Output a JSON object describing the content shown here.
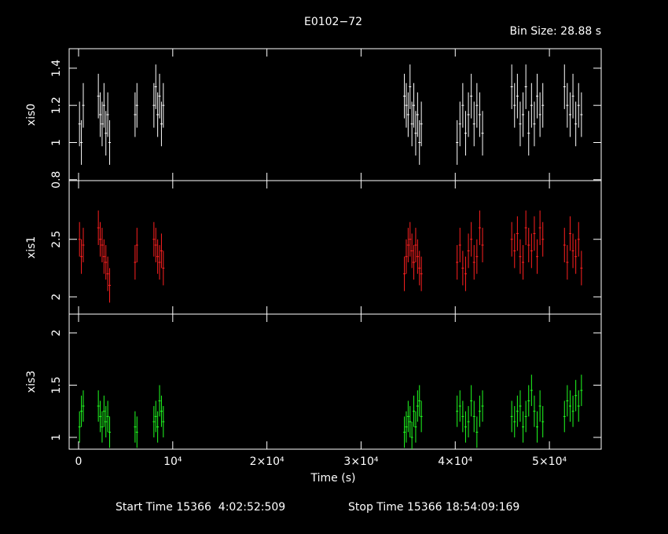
{
  "chart_data": {
    "type": "errorbar",
    "title": "E0102−72",
    "subtitle": "Bin Size: 28.88 s",
    "xlabel": "Time (s)",
    "start_time": "Start Time 15366  4:02:52:509",
    "stop_time": "Stop Time 15366 18:54:09:169",
    "x": [
      100,
      300,
      500,
      2100,
      2300,
      2500,
      2700,
      2900,
      3100,
      3300,
      6000,
      6200,
      8000,
      8200,
      8400,
      8600,
      8800,
      9000,
      34600,
      34800,
      35000,
      35200,
      35400,
      35600,
      35800,
      36000,
      36200,
      36400,
      40200,
      40500,
      40800,
      41100,
      41400,
      41700,
      42000,
      42300,
      42600,
      42900,
      46000,
      46300,
      46600,
      46900,
      47200,
      47500,
      47800,
      48100,
      48400,
      48700,
      49000,
      49300,
      51600,
      51900,
      52200,
      52500,
      52800,
      53100,
      53400
    ],
    "xlim": [
      -1000,
      55500
    ],
    "xticks": [
      0,
      {
        "value": 10000,
        "label": "10⁴"
      },
      {
        "value": 20000,
        "label": "2×10⁴"
      },
      {
        "value": 30000,
        "label": "3×10⁴"
      },
      {
        "value": 40000,
        "label": "4×10⁴"
      },
      {
        "value": 50000,
        "label": "5×10⁴"
      }
    ],
    "series": [
      {
        "name": "xis0",
        "color": "#ffffff",
        "error": 0.12,
        "ylim": [
          0.795,
          1.505
        ],
        "yticks": [
          0.8,
          1,
          1.2,
          1.4
        ],
        "values": [
          1.1,
          1.0,
          1.2,
          1.25,
          1.15,
          1.1,
          1.2,
          1.05,
          1.15,
          1.0,
          1.15,
          1.2,
          1.2,
          1.3,
          1.15,
          1.25,
          1.1,
          1.2,
          1.25,
          1.2,
          1.15,
          1.3,
          1.1,
          1.2,
          1.05,
          1.15,
          1.0,
          1.1,
          1.0,
          1.1,
          1.2,
          1.05,
          1.15,
          1.25,
          1.1,
          1.2,
          1.15,
          1.05,
          1.3,
          1.2,
          1.25,
          1.1,
          1.15,
          1.3,
          1.05,
          1.2,
          1.1,
          1.25,
          1.15,
          1.2,
          1.3,
          1.2,
          1.15,
          1.25,
          1.1,
          1.2,
          1.15
        ]
      },
      {
        "name": "xis1",
        "color": "#ff2020",
        "error": 0.15,
        "ylim": [
          1.85,
          3.01
        ],
        "yticks": [
          2,
          2.5
        ],
        "values": [
          2.5,
          2.35,
          2.45,
          2.6,
          2.5,
          2.45,
          2.35,
          2.3,
          2.2,
          2.1,
          2.3,
          2.45,
          2.5,
          2.45,
          2.35,
          2.3,
          2.4,
          2.25,
          2.2,
          2.35,
          2.45,
          2.5,
          2.4,
          2.3,
          2.45,
          2.35,
          2.25,
          2.2,
          2.3,
          2.45,
          2.25,
          2.2,
          2.4,
          2.5,
          2.3,
          2.35,
          2.6,
          2.45,
          2.5,
          2.4,
          2.55,
          2.35,
          2.3,
          2.6,
          2.45,
          2.4,
          2.55,
          2.35,
          2.6,
          2.5,
          2.45,
          2.3,
          2.55,
          2.4,
          2.35,
          2.5,
          2.25
        ]
      },
      {
        "name": "xis3",
        "color": "#20ff20",
        "error": 0.15,
        "ylim": [
          0.887,
          2.18
        ],
        "yticks": [
          1,
          1.5,
          2
        ],
        "values": [
          1.1,
          1.25,
          1.3,
          1.3,
          1.2,
          1.1,
          1.25,
          1.15,
          1.2,
          1.05,
          1.1,
          1.05,
          1.15,
          1.2,
          1.1,
          1.35,
          1.25,
          1.15,
          1.05,
          1.1,
          1.2,
          1.15,
          1.0,
          1.25,
          1.1,
          1.3,
          1.35,
          1.2,
          1.25,
          1.3,
          1.2,
          1.1,
          1.15,
          1.35,
          1.2,
          1.05,
          1.25,
          1.3,
          1.2,
          1.15,
          1.25,
          1.3,
          1.1,
          1.2,
          1.35,
          1.45,
          1.25,
          1.1,
          1.3,
          1.15,
          1.2,
          1.35,
          1.3,
          1.25,
          1.4,
          1.3,
          1.45
        ]
      }
    ]
  }
}
